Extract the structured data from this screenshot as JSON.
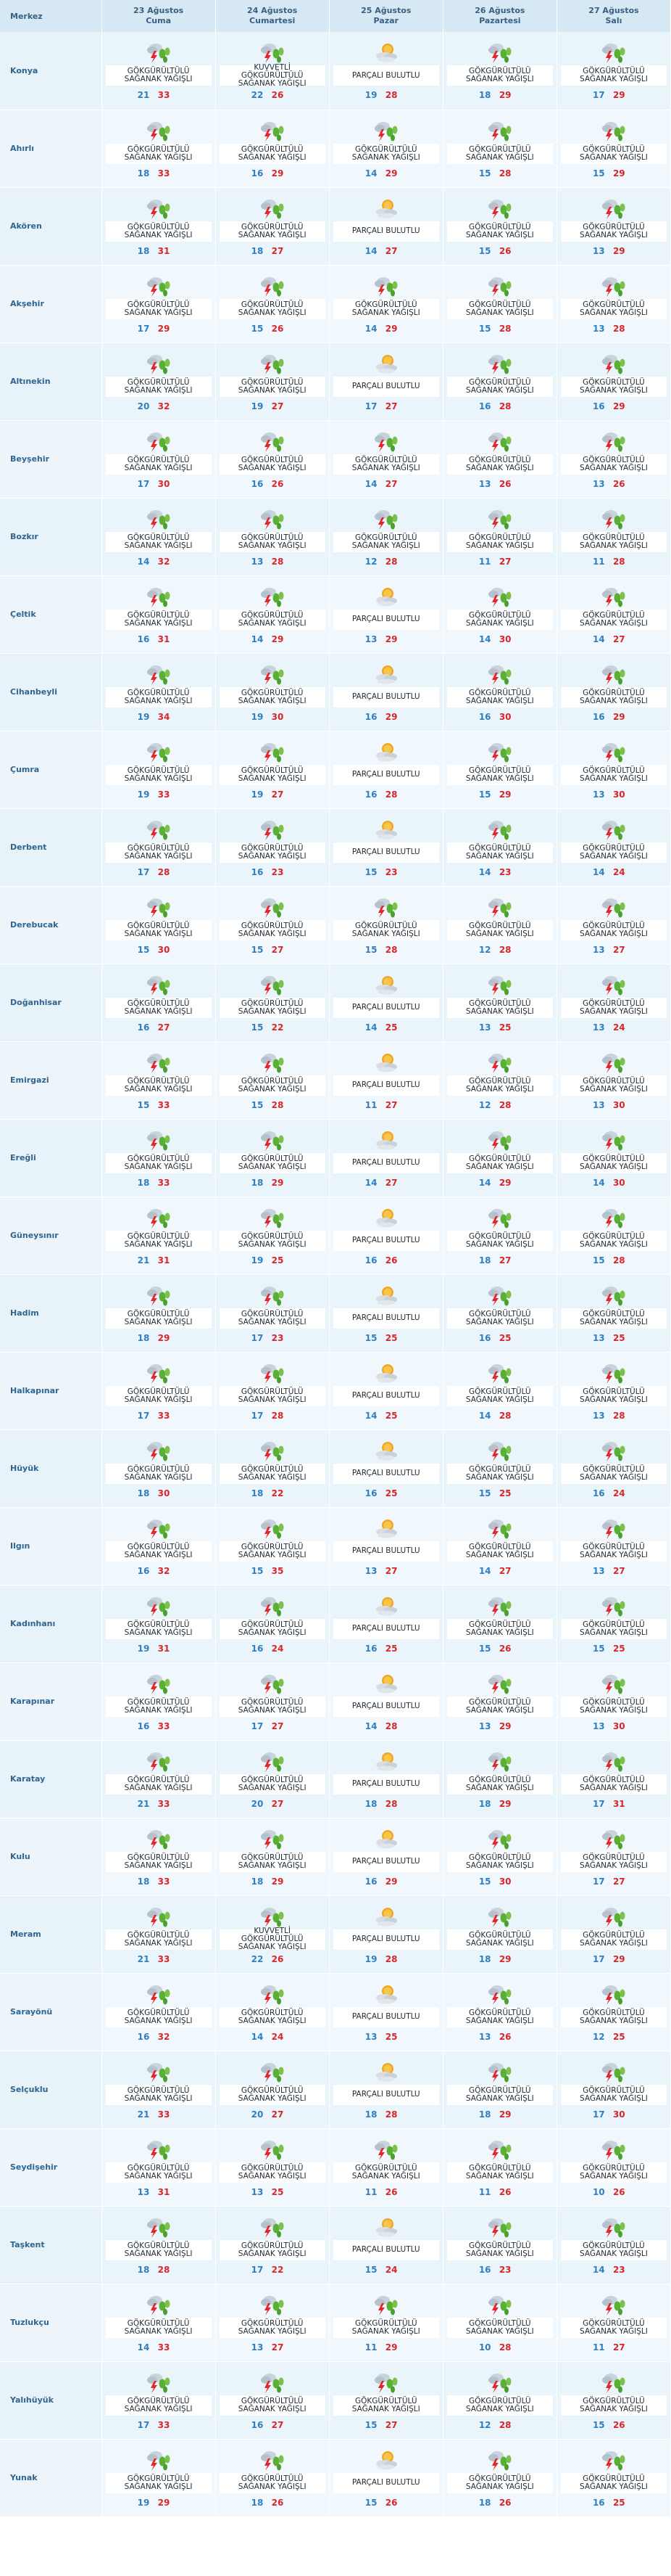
{
  "header": {
    "station": "Merkez"
  },
  "days": [
    {
      "date": "23 Ağustos",
      "weekday": "Cuma"
    },
    {
      "date": "24 Ağustos",
      "weekday": "Cumartesi"
    },
    {
      "date": "25 Ağustos",
      "weekday": "Pazar"
    },
    {
      "date": "26 Ağustos",
      "weekday": "Pazartesi"
    },
    {
      "date": "27 Ağustos",
      "weekday": "Salı"
    }
  ],
  "conditions": {
    "S": {
      "icon": "thunderstorm-icon",
      "lines": [
        "GÖKGÜRÜLTÜLÜ",
        "SAĞANAK YAĞIŞLI"
      ]
    },
    "K": {
      "icon": "thunderstorm-icon",
      "lines": [
        "KUVVETLİ",
        "GÖKGÜRÜLTÜLÜ",
        "SAĞANAK YAĞIŞLI"
      ]
    },
    "P": {
      "icon": "partly-cloudy-icon",
      "lines": [
        "PARÇALI BULUTLU"
      ]
    }
  },
  "colors": {
    "min_temp": "#2f7fc1",
    "max_temp": "#d9262b",
    "header_bg": "#d6e8f4",
    "city_text": "#2f6591"
  },
  "cities": [
    {
      "name": "Konya",
      "forecast": [
        [
          "S",
          21,
          33
        ],
        [
          "K",
          22,
          26
        ],
        [
          "P",
          19,
          28
        ],
        [
          "S",
          18,
          29
        ],
        [
          "S",
          17,
          29
        ]
      ]
    },
    {
      "name": "Ahırlı",
      "forecast": [
        [
          "S",
          18,
          33
        ],
        [
          "S",
          16,
          29
        ],
        [
          "S",
          14,
          29
        ],
        [
          "S",
          15,
          28
        ],
        [
          "S",
          15,
          29
        ]
      ]
    },
    {
      "name": "Akören",
      "forecast": [
        [
          "S",
          18,
          31
        ],
        [
          "S",
          18,
          27
        ],
        [
          "P",
          14,
          27
        ],
        [
          "S",
          15,
          26
        ],
        [
          "S",
          13,
          29
        ]
      ]
    },
    {
      "name": "Akşehir",
      "forecast": [
        [
          "S",
          17,
          29
        ],
        [
          "S",
          15,
          26
        ],
        [
          "S",
          14,
          29
        ],
        [
          "S",
          15,
          28
        ],
        [
          "S",
          13,
          28
        ]
      ]
    },
    {
      "name": "Altınekin",
      "forecast": [
        [
          "S",
          20,
          32
        ],
        [
          "S",
          19,
          27
        ],
        [
          "P",
          17,
          27
        ],
        [
          "S",
          16,
          28
        ],
        [
          "S",
          16,
          29
        ]
      ]
    },
    {
      "name": "Beyşehir",
      "forecast": [
        [
          "S",
          17,
          30
        ],
        [
          "S",
          16,
          26
        ],
        [
          "S",
          14,
          27
        ],
        [
          "S",
          13,
          26
        ],
        [
          "S",
          13,
          26
        ]
      ]
    },
    {
      "name": "Bozkır",
      "forecast": [
        [
          "S",
          14,
          32
        ],
        [
          "S",
          13,
          28
        ],
        [
          "S",
          12,
          28
        ],
        [
          "S",
          11,
          27
        ],
        [
          "S",
          11,
          28
        ]
      ]
    },
    {
      "name": "Çeltik",
      "forecast": [
        [
          "S",
          16,
          31
        ],
        [
          "S",
          14,
          29
        ],
        [
          "P",
          13,
          29
        ],
        [
          "S",
          14,
          30
        ],
        [
          "S",
          14,
          27
        ]
      ]
    },
    {
      "name": "Cihanbeyli",
      "forecast": [
        [
          "S",
          19,
          34
        ],
        [
          "S",
          19,
          30
        ],
        [
          "P",
          16,
          29
        ],
        [
          "S",
          16,
          30
        ],
        [
          "S",
          16,
          29
        ]
      ]
    },
    {
      "name": "Çumra",
      "forecast": [
        [
          "S",
          19,
          33
        ],
        [
          "S",
          19,
          27
        ],
        [
          "P",
          16,
          28
        ],
        [
          "S",
          15,
          29
        ],
        [
          "S",
          13,
          30
        ]
      ]
    },
    {
      "name": "Derbent",
      "forecast": [
        [
          "S",
          17,
          28
        ],
        [
          "S",
          16,
          23
        ],
        [
          "P",
          15,
          23
        ],
        [
          "S",
          14,
          23
        ],
        [
          "S",
          14,
          24
        ]
      ]
    },
    {
      "name": "Derebucak",
      "forecast": [
        [
          "S",
          15,
          30
        ],
        [
          "S",
          15,
          27
        ],
        [
          "S",
          15,
          28
        ],
        [
          "S",
          12,
          28
        ],
        [
          "S",
          13,
          27
        ]
      ]
    },
    {
      "name": "Doğanhisar",
      "forecast": [
        [
          "S",
          16,
          27
        ],
        [
          "S",
          15,
          22
        ],
        [
          "P",
          14,
          25
        ],
        [
          "S",
          13,
          25
        ],
        [
          "S",
          13,
          24
        ]
      ]
    },
    {
      "name": "Emirgazi",
      "forecast": [
        [
          "S",
          15,
          33
        ],
        [
          "S",
          15,
          28
        ],
        [
          "P",
          11,
          27
        ],
        [
          "S",
          12,
          28
        ],
        [
          "S",
          13,
          30
        ]
      ]
    },
    {
      "name": "Ereğli",
      "forecast": [
        [
          "S",
          18,
          33
        ],
        [
          "S",
          18,
          29
        ],
        [
          "P",
          14,
          27
        ],
        [
          "S",
          14,
          29
        ],
        [
          "S",
          14,
          30
        ]
      ]
    },
    {
      "name": "Güneysınır",
      "forecast": [
        [
          "S",
          21,
          31
        ],
        [
          "S",
          19,
          25
        ],
        [
          "P",
          16,
          26
        ],
        [
          "S",
          18,
          27
        ],
        [
          "S",
          15,
          28
        ]
      ]
    },
    {
      "name": "Hadim",
      "forecast": [
        [
          "S",
          18,
          29
        ],
        [
          "S",
          17,
          23
        ],
        [
          "P",
          15,
          25
        ],
        [
          "S",
          16,
          25
        ],
        [
          "S",
          13,
          25
        ]
      ]
    },
    {
      "name": "Halkapınar",
      "forecast": [
        [
          "S",
          17,
          33
        ],
        [
          "S",
          17,
          28
        ],
        [
          "P",
          14,
          25
        ],
        [
          "S",
          14,
          28
        ],
        [
          "S",
          13,
          28
        ]
      ]
    },
    {
      "name": "Hüyük",
      "forecast": [
        [
          "S",
          18,
          30
        ],
        [
          "S",
          18,
          22
        ],
        [
          "P",
          16,
          25
        ],
        [
          "S",
          15,
          25
        ],
        [
          "S",
          16,
          24
        ]
      ]
    },
    {
      "name": "Ilgın",
      "forecast": [
        [
          "S",
          16,
          32
        ],
        [
          "S",
          15,
          35
        ],
        [
          "P",
          13,
          27
        ],
        [
          "S",
          14,
          27
        ],
        [
          "S",
          13,
          27
        ]
      ]
    },
    {
      "name": "Kadınhanı",
      "forecast": [
        [
          "S",
          19,
          31
        ],
        [
          "S",
          16,
          24
        ],
        [
          "P",
          16,
          25
        ],
        [
          "S",
          15,
          26
        ],
        [
          "S",
          15,
          25
        ]
      ]
    },
    {
      "name": "Karapınar",
      "forecast": [
        [
          "S",
          16,
          33
        ],
        [
          "S",
          17,
          27
        ],
        [
          "P",
          14,
          28
        ],
        [
          "S",
          13,
          29
        ],
        [
          "S",
          13,
          30
        ]
      ]
    },
    {
      "name": "Karatay",
      "forecast": [
        [
          "S",
          21,
          33
        ],
        [
          "S",
          20,
          27
        ],
        [
          "P",
          18,
          28
        ],
        [
          "S",
          18,
          29
        ],
        [
          "S",
          17,
          31
        ]
      ]
    },
    {
      "name": "Kulu",
      "forecast": [
        [
          "S",
          18,
          33
        ],
        [
          "S",
          18,
          29
        ],
        [
          "P",
          16,
          29
        ],
        [
          "S",
          15,
          30
        ],
        [
          "S",
          17,
          27
        ]
      ]
    },
    {
      "name": "Meram",
      "forecast": [
        [
          "S",
          21,
          33
        ],
        [
          "K",
          22,
          26
        ],
        [
          "P",
          19,
          28
        ],
        [
          "S",
          18,
          29
        ],
        [
          "S",
          17,
          29
        ]
      ]
    },
    {
      "name": "Sarayönü",
      "forecast": [
        [
          "S",
          16,
          32
        ],
        [
          "S",
          14,
          24
        ],
        [
          "P",
          13,
          25
        ],
        [
          "S",
          13,
          26
        ],
        [
          "S",
          12,
          25
        ]
      ]
    },
    {
      "name": "Selçuklu",
      "forecast": [
        [
          "S",
          21,
          33
        ],
        [
          "S",
          20,
          27
        ],
        [
          "P",
          18,
          28
        ],
        [
          "S",
          18,
          29
        ],
        [
          "S",
          17,
          30
        ]
      ]
    },
    {
      "name": "Seydişehir",
      "forecast": [
        [
          "S",
          13,
          31
        ],
        [
          "S",
          13,
          25
        ],
        [
          "S",
          11,
          26
        ],
        [
          "S",
          11,
          26
        ],
        [
          "S",
          10,
          26
        ]
      ]
    },
    {
      "name": "Taşkent",
      "forecast": [
        [
          "S",
          18,
          28
        ],
        [
          "S",
          17,
          22
        ],
        [
          "P",
          15,
          24
        ],
        [
          "S",
          16,
          23
        ],
        [
          "S",
          14,
          23
        ]
      ]
    },
    {
      "name": "Tuzlukçu",
      "forecast": [
        [
          "S",
          14,
          33
        ],
        [
          "S",
          13,
          27
        ],
        [
          "S",
          11,
          29
        ],
        [
          "S",
          10,
          28
        ],
        [
          "S",
          11,
          27
        ]
      ]
    },
    {
      "name": "Yalıhüyük",
      "forecast": [
        [
          "S",
          17,
          33
        ],
        [
          "S",
          16,
          27
        ],
        [
          "S",
          15,
          27
        ],
        [
          "S",
          12,
          28
        ],
        [
          "S",
          15,
          26
        ]
      ]
    },
    {
      "name": "Yunak",
      "forecast": [
        [
          "S",
          19,
          29
        ],
        [
          "S",
          18,
          26
        ],
        [
          "P",
          15,
          26
        ],
        [
          "S",
          18,
          26
        ],
        [
          "S",
          16,
          25
        ]
      ]
    }
  ]
}
